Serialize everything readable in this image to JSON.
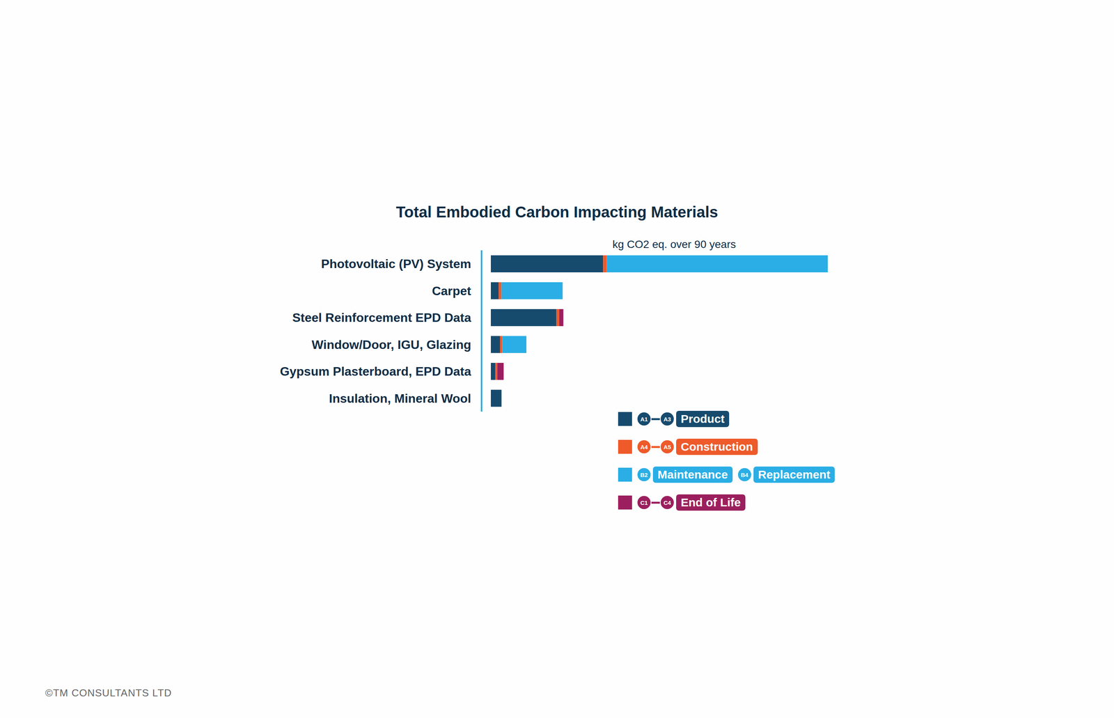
{
  "chart_data": {
    "type": "bar",
    "title": "Total Embodied Carbon Impacting Materials",
    "x_label": "kg CO2 eq. over 90 years",
    "orientation": "horizontal",
    "stacked": true,
    "tick_labels": "y",
    "categories": [
      "Photovoltaic (PV) System",
      "Carpet",
      "Steel Reinforcement EPD Data",
      "Window/Door, IGU, Glazing",
      "Gypsum Plasterboard, EPD Data",
      "Insulation, Mineral Wool"
    ],
    "xlim": [
      0,
      474
    ],
    "series": [
      {
        "color": "#174b6e",
        "values": [
          158,
          11,
          92,
          13,
          6,
          15
        ],
        "legend_entries": [
          {
            "codes": [
              "A1",
              "A3"
            ],
            "label": "Product"
          }
        ]
      },
      {
        "color": "#ee5a2a",
        "values": [
          5,
          4,
          4,
          3,
          3,
          0
        ],
        "legend_entries": [
          {
            "codes": [
              "A4",
              "A5"
            ],
            "label": "Construction"
          }
        ]
      },
      {
        "color": "#2aaee5",
        "values": [
          311,
          86,
          0,
          34,
          0,
          0
        ],
        "legend_entries": [
          {
            "codes": [
              "B2"
            ],
            "label": "Maintenance"
          },
          {
            "codes": [
              "B4"
            ],
            "label": "Replacement"
          }
        ]
      },
      {
        "color": "#9b1f5e",
        "values": [
          0,
          0,
          6,
          0,
          9,
          0
        ],
        "legend_entries": [
          {
            "codes": [
              "C1",
              "C4"
            ],
            "label": "End of Life"
          }
        ]
      }
    ]
  },
  "footer": "©TM CONSULTANTS LTD"
}
